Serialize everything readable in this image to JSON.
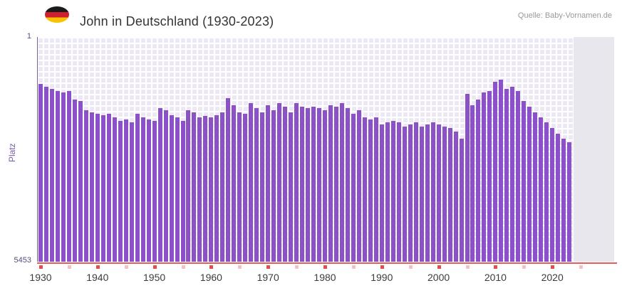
{
  "header": {
    "source": "Quelle: Baby-Vornamen.de",
    "flag_icon": "german-flag"
  },
  "chart_data": {
    "type": "bar",
    "title": "John in Deutschland (1930-2023)",
    "xlabel": "",
    "ylabel": "Platz",
    "legend": "none",
    "grid": "checkered-lavender",
    "bar_color": "#8a52c6",
    "colors": {
      "bar": "#8a52c6",
      "x_axis_line": "#e35d5d",
      "tick_major": "#e04f4f",
      "tick_minor": "#f3c3c3",
      "plot_background": "#ece9f4",
      "no_data_band": "#e8e7ee",
      "y_axis_accent": "#7a5fa5"
    },
    "y_axis": {
      "min": 1,
      "max": 5453,
      "inverted": true,
      "top_label": "1",
      "bottom_label": "5453"
    },
    "x_tick_labels": [
      "1930",
      "1940",
      "1950",
      "1960",
      "1970",
      "1980",
      "1990",
      "2000",
      "2010",
      "2020"
    ],
    "minor_tick_step_years": 5,
    "years": [
      1930,
      1931,
      1932,
      1933,
      1934,
      1935,
      1936,
      1937,
      1938,
      1939,
      1940,
      1941,
      1942,
      1943,
      1944,
      1945,
      1946,
      1947,
      1948,
      1949,
      1950,
      1951,
      1952,
      1953,
      1954,
      1955,
      1956,
      1957,
      1958,
      1959,
      1960,
      1961,
      1962,
      1963,
      1964,
      1965,
      1966,
      1967,
      1968,
      1969,
      1970,
      1971,
      1972,
      1973,
      1974,
      1975,
      1976,
      1977,
      1978,
      1979,
      1980,
      1981,
      1982,
      1983,
      1984,
      1985,
      1986,
      1987,
      1988,
      1989,
      1990,
      1991,
      1992,
      1993,
      1994,
      1995,
      1996,
      1997,
      1998,
      1999,
      2000,
      2001,
      2002,
      2003,
      2004,
      2005,
      2006,
      2007,
      2008,
      2009,
      2010,
      2011,
      2012,
      2013,
      2014,
      2015,
      2016,
      2017,
      2018,
      2019,
      2020,
      2021,
      2022,
      2023
    ],
    "ranks": [
      1140,
      1210,
      1260,
      1310,
      1350,
      1310,
      1520,
      1550,
      1780,
      1830,
      1860,
      1900,
      1860,
      1950,
      2040,
      2000,
      2070,
      1860,
      1950,
      2000,
      2040,
      1730,
      1780,
      1900,
      1950,
      2040,
      1780,
      1830,
      1950,
      1920,
      1950,
      1900,
      1830,
      1490,
      1660,
      1830,
      1860,
      1600,
      1730,
      1830,
      1660,
      1780,
      1600,
      1690,
      1830,
      1600,
      1690,
      1730,
      1690,
      1730,
      1780,
      1660,
      1690,
      1600,
      1730,
      1860,
      1780,
      1950,
      2000,
      1950,
      2120,
      2070,
      2040,
      2070,
      2170,
      2120,
      2070,
      2170,
      2120,
      2070,
      2120,
      2170,
      2210,
      2300,
      2470,
      1380,
      1660,
      1520,
      1350,
      1310,
      1090,
      1040,
      1260,
      1210,
      1310,
      1550,
      1690,
      1830,
      1950,
      2070,
      2210,
      2350,
      2470,
      2550
    ]
  }
}
